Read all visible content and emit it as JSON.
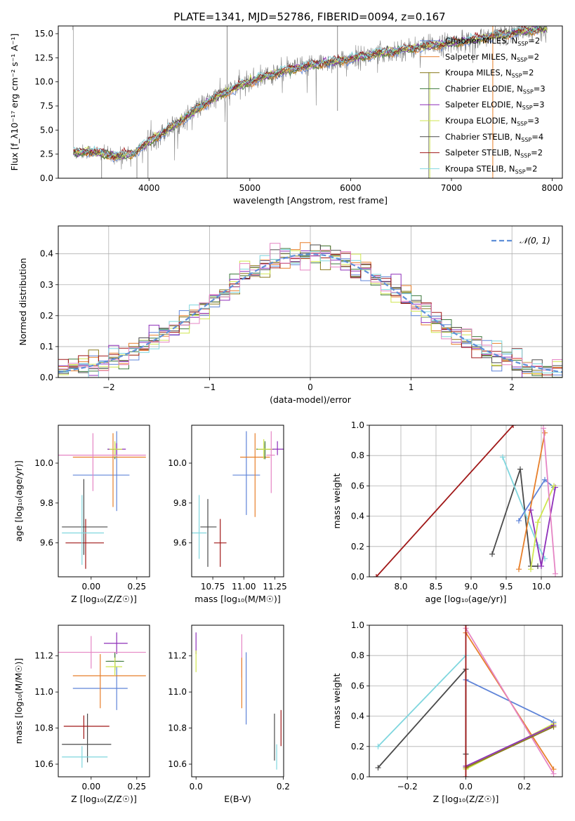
{
  "figure_title": "PLATE=1341, MJD=52786, FIBERID=0094, z=0.167",
  "colors": {
    "Chabrier MILES": "#5f84d8",
    "Salpeter MILES": "#e77f2a",
    "Kroupa MILES": "#8a7a1e",
    "Chabrier ELODIE": "#3e7a3e",
    "Salpeter ELODIE": "#8e2fb9",
    "Kroupa ELODIE": "#cfe64f",
    "Chabrier STELIB": "#4a4a4a",
    "Salpeter STELIB": "#a01818",
    "Kroupa STELIB": "#7fd6de",
    "extra_pink": "#e585c4",
    "normal_curve": "#5f8fd8"
  },
  "chart_data": [
    {
      "id": "spectrum",
      "type": "line",
      "xlabel": "wavelength [Angstrom, rest frame]",
      "ylabel": "Flux [f_λ10⁻¹⁷ erg cm⁻² s⁻¹ A⁻¹]",
      "xlim": [
        3100,
        8100
      ],
      "ylim": [
        0,
        15.8
      ],
      "xticks": [
        4000,
        5000,
        6000,
        7000,
        8000
      ],
      "yticks": [
        0.0,
        2.5,
        5.0,
        7.5,
        10.0,
        12.5,
        15.0
      ],
      "ytick_labels": [
        "0.0",
        "2.5",
        "5.0",
        "7.5",
        "10.0",
        "12.5",
        "15.0"
      ],
      "legend_position": "top-right",
      "legend": [
        {
          "label": "Chabrier MILES, N",
          "sub": "SSP",
          "tail": "=2"
        },
        {
          "label": "Salpeter MILES, N",
          "sub": "SSP",
          "tail": "=2"
        },
        {
          "label": "Kroupa MILES, N",
          "sub": "SSP",
          "tail": "=2"
        },
        {
          "label": "Chabrier ELODIE, N",
          "sub": "SSP",
          "tail": "=3"
        },
        {
          "label": "Salpeter ELODIE, N",
          "sub": "SSP",
          "tail": "=3"
        },
        {
          "label": "Kroupa ELODIE, N",
          "sub": "SSP",
          "tail": "=3"
        },
        {
          "label": "Chabrier STELIB, N",
          "sub": "SSP",
          "tail": "=4"
        },
        {
          "label": "Salpeter STELIB, N",
          "sub": "SSP",
          "tail": "=2"
        },
        {
          "label": "Kroupa STELIB, N",
          "sub": "SSP",
          "tail": "=2"
        }
      ],
      "continuum": {
        "x": [
          3250,
          3400,
          3550,
          3700,
          3850,
          4000,
          4150,
          4300,
          4500,
          4700,
          4900,
          5100,
          5300,
          5500,
          5700,
          5900,
          6100,
          6300,
          6500,
          6700,
          6900,
          7100,
          7300,
          7500,
          7700,
          7900
        ],
        "y": [
          2.6,
          2.8,
          2.5,
          2.3,
          2.6,
          3.8,
          4.8,
          5.8,
          7.4,
          8.6,
          9.6,
          10.4,
          11.0,
          11.5,
          11.9,
          12.2,
          12.6,
          13.0,
          13.3,
          13.6,
          13.9,
          14.2,
          14.5,
          14.9,
          15.2,
          15.5
        ]
      }
    },
    {
      "id": "residuals",
      "type": "histogram",
      "xlabel": "(data-model)/error",
      "ylabel": "Normed distribution",
      "xlim": [
        -2.5,
        2.5
      ],
      "ylim": [
        0,
        0.49
      ],
      "xticks": [
        -2,
        -1,
        0,
        1,
        2
      ],
      "xtick_labels": [
        "−2",
        "−1",
        "0",
        "1",
        "2"
      ],
      "yticks": [
        0.0,
        0.1,
        0.2,
        0.3,
        0.4
      ],
      "ytick_labels": [
        "0.0",
        "0.1",
        "0.2",
        "0.3",
        "0.4"
      ],
      "grid": true,
      "legend_position": "top-right",
      "legend_label": "𝒩(0, 1)",
      "bin_width": 0.1
    },
    {
      "id": "age_vs_Z",
      "type": "errorbar",
      "xlabel": "Z [log₁₀(Z/Z☉)]",
      "ylabel": "age [log₁₀(age/yr)]",
      "xlim": [
        -0.18,
        0.32
      ],
      "ylim": [
        9.43,
        10.19
      ],
      "xticks": [
        0.0,
        0.25
      ],
      "xtick_labels": [
        "0.00",
        "0.25"
      ],
      "yticks": [
        9.6,
        9.8,
        10.0
      ],
      "ytick_labels": [
        "9.6",
        "9.8",
        "10.0"
      ],
      "points": [
        {
          "model": "Chabrier MILES",
          "x": 0.14,
          "y": 9.94,
          "xerr": [
            0.24,
            0.07
          ],
          "yerr": [
            0.18,
            0.22
          ]
        },
        {
          "model": "Salpeter MILES",
          "x": 0.12,
          "y": 10.03,
          "xerr": [
            0.22,
            0.18
          ],
          "yerr": [
            0.25,
            0.12
          ]
        },
        {
          "model": "Kroupa MILES",
          "x": 0.13,
          "y": 10.07,
          "xerr": [
            0.03,
            0.04
          ],
          "yerr": [
            0.03,
            0.03
          ]
        },
        {
          "model": "Chabrier ELODIE",
          "x": 0.13,
          "y": 10.07,
          "xerr": [
            0.04,
            0.04
          ],
          "yerr": [
            0.05,
            0.03
          ]
        },
        {
          "model": "Salpeter ELODIE",
          "x": 0.14,
          "y": 10.07,
          "xerr": [
            0.05,
            0.05
          ],
          "yerr": [
            0.03,
            0.03
          ]
        },
        {
          "model": "Kroupa ELODIE",
          "x": 0.13,
          "y": 10.07,
          "xerr": [
            0.03,
            0.04
          ],
          "yerr": [
            0.04,
            0.04
          ]
        },
        {
          "model": "Chabrier STELIB",
          "x": -0.04,
          "y": 9.68,
          "xerr": [
            0.12,
            0.13
          ],
          "yerr": [
            0.14,
            0.24
          ]
        },
        {
          "model": "Salpeter STELIB",
          "x": -0.03,
          "y": 9.6,
          "xerr": [
            0.11,
            0.1
          ],
          "yerr": [
            0.13,
            0.12
          ]
        },
        {
          "model": "Kroupa STELIB",
          "x": -0.05,
          "y": 9.65,
          "xerr": [
            0.11,
            0.12
          ],
          "yerr": [
            0.16,
            0.19
          ]
        },
        {
          "model": "extra_pink",
          "x": 0.01,
          "y": 10.04,
          "xerr": [
            0.26,
            0.29
          ],
          "yerr": [
            0.18,
            0.11
          ]
        }
      ]
    },
    {
      "id": "age_vs_mass",
      "type": "errorbar",
      "xlabel": "mass [log₁₀(M/M☉)]",
      "ylabel": "",
      "xlim": [
        10.58,
        11.32
      ],
      "ylim": [
        9.43,
        10.19
      ],
      "xticks": [
        10.75,
        11.0,
        11.25
      ],
      "xtick_labels": [
        "10.75",
        "11.00",
        "11.25"
      ],
      "yticks": [
        9.6,
        9.8,
        10.0
      ],
      "ytick_labels": [
        "9.6",
        "9.8",
        "10.0"
      ],
      "points": [
        {
          "model": "Chabrier MILES",
          "x": 11.02,
          "y": 9.94,
          "xerr": [
            0.11,
            0.11
          ],
          "yerr": [
            0.2,
            0.22
          ]
        },
        {
          "model": "Salpeter MILES",
          "x": 11.09,
          "y": 10.03,
          "xerr": [
            0.12,
            0.12
          ],
          "yerr": [
            0.3,
            0.12
          ]
        },
        {
          "model": "Kroupa MILES",
          "x": 11.17,
          "y": 10.07,
          "xerr": [
            0.06,
            0.06
          ],
          "yerr": [
            0.05,
            0.03
          ]
        },
        {
          "model": "Chabrier ELODIE",
          "x": 11.17,
          "y": 10.07,
          "xerr": [
            0.07,
            0.07
          ],
          "yerr": [
            0.05,
            0.04
          ]
        },
        {
          "model": "Salpeter ELODIE",
          "x": 11.27,
          "y": 10.07,
          "xerr": [
            0.06,
            0.06
          ],
          "yerr": [
            0.03,
            0.04
          ]
        },
        {
          "model": "Kroupa ELODIE",
          "x": 11.16,
          "y": 10.07,
          "xerr": [
            0.05,
            0.07
          ],
          "yerr": [
            0.05,
            0.05
          ]
        },
        {
          "model": "Chabrier STELIB",
          "x": 10.71,
          "y": 9.68,
          "xerr": [
            0.06,
            0.07
          ],
          "yerr": [
            0.2,
            0.14
          ]
        },
        {
          "model": "Salpeter STELIB",
          "x": 10.81,
          "y": 9.6,
          "xerr": [
            0.05,
            0.05
          ],
          "yerr": [
            0.12,
            0.12
          ]
        },
        {
          "model": "Kroupa STELIB",
          "x": 10.64,
          "y": 9.65,
          "xerr": [
            0.06,
            0.06
          ],
          "yerr": [
            0.13,
            0.19
          ]
        },
        {
          "model": "extra_pink",
          "x": 11.22,
          "y": 10.04,
          "xerr": [
            0.04,
            0.03
          ],
          "yerr": [
            0.19,
            0.12
          ]
        }
      ]
    },
    {
      "id": "weight_vs_age",
      "type": "line",
      "xlabel": "age [log₁₀(age/yr)]",
      "ylabel": "mass weight",
      "xlim": [
        7.55,
        10.3
      ],
      "ylim": [
        0,
        1
      ],
      "xticks": [
        8.0,
        8.5,
        9.0,
        9.5,
        10.0
      ],
      "xtick_labels": [
        "8.0",
        "8.5",
        "9.0",
        "9.5",
        "10.0"
      ],
      "yticks": [
        0.0,
        0.2,
        0.4,
        0.6,
        0.8,
        1.0
      ],
      "ytick_labels": [
        "0.0",
        "0.2",
        "0.4",
        "0.6",
        "0.8",
        "1.0"
      ],
      "grid": true,
      "series": [
        {
          "model": "Salpeter STELIB",
          "x": [
            7.65,
            9.6
          ],
          "y": [
            0.0,
            1.0
          ]
        },
        {
          "model": "Chabrier STELIB",
          "x": [
            9.3,
            9.7,
            9.85,
            9.95
          ],
          "y": [
            0.15,
            0.71,
            0.07,
            0.07
          ]
        },
        {
          "model": "Kroupa STELIB",
          "x": [
            9.45,
            9.95,
            10.05
          ],
          "y": [
            0.79,
            0.21,
            0.12
          ]
        },
        {
          "model": "Chabrier MILES",
          "x": [
            9.68,
            10.05,
            10.18
          ],
          "y": [
            0.37,
            0.64,
            0.59
          ]
        },
        {
          "model": "Salpeter MILES",
          "x": [
            9.68,
            10.05
          ],
          "y": [
            0.05,
            0.95
          ]
        },
        {
          "model": "Salpeter ELODIE",
          "x": [
            9.85,
            10.0,
            10.2
          ],
          "y": [
            0.44,
            0.07,
            0.59
          ]
        },
        {
          "model": "Kroupa ELODIE",
          "x": [
            9.85,
            9.95,
            10.18
          ],
          "y": [
            0.05,
            0.36,
            0.6
          ]
        },
        {
          "model": "extra_pink",
          "x": [
            10.03,
            10.2
          ],
          "y": [
            0.98,
            0.02
          ]
        }
      ]
    },
    {
      "id": "mass_vs_Z",
      "type": "errorbar",
      "xlabel": "Z [log₁₀(Z/Z☉)]",
      "ylabel": "mass [log₁₀(M/M☉)]",
      "xlim": [
        -0.18,
        0.32
      ],
      "ylim": [
        10.53,
        11.37
      ],
      "xticks": [
        0.0,
        0.25
      ],
      "xtick_labels": [
        "0.00",
        "0.25"
      ],
      "yticks": [
        10.6,
        10.8,
        11.0,
        11.2
      ],
      "ytick_labels": [
        "10.6",
        "10.8",
        "11.0",
        "11.2"
      ],
      "points": [
        {
          "model": "Chabrier MILES",
          "x": 0.14,
          "y": 11.02,
          "xerr": [
            0.24,
            0.06
          ],
          "yerr": [
            0.12,
            0.12
          ]
        },
        {
          "model": "Salpeter MILES",
          "x": 0.05,
          "y": 11.09,
          "xerr": [
            0.15,
            0.25
          ],
          "yerr": [
            0.18,
            0.12
          ]
        },
        {
          "model": "Kroupa MILES",
          "x": 0.13,
          "y": 11.17,
          "xerr": [
            0.04,
            0.03
          ],
          "yerr": [
            0.04,
            0.04
          ]
        },
        {
          "model": "Chabrier ELODIE",
          "x": 0.13,
          "y": 11.17,
          "xerr": [
            0.05,
            0.05
          ],
          "yerr": [
            0.05,
            0.05
          ]
        },
        {
          "model": "Salpeter ELODIE",
          "x": 0.14,
          "y": 11.27,
          "xerr": [
            0.07,
            0.06
          ],
          "yerr": [
            0.06,
            0.06
          ]
        },
        {
          "model": "Kroupa ELODIE",
          "x": 0.13,
          "y": 11.14,
          "xerr": [
            0.05,
            0.04
          ],
          "yerr": [
            0.05,
            0.05
          ]
        },
        {
          "model": "Chabrier STELIB",
          "x": -0.02,
          "y": 10.71,
          "xerr": [
            0.14,
            0.13
          ],
          "yerr": [
            0.1,
            0.17
          ]
        },
        {
          "model": "Salpeter STELIB",
          "x": -0.04,
          "y": 10.81,
          "xerr": [
            0.11,
            0.14
          ],
          "yerr": [
            0.07,
            0.06
          ]
        },
        {
          "model": "Kroupa STELIB",
          "x": -0.05,
          "y": 10.64,
          "xerr": [
            0.11,
            0.14
          ],
          "yerr": [
            0.06,
            0.06
          ]
        },
        {
          "model": "extra_pink",
          "x": 0.0,
          "y": 11.22,
          "xerr": [
            0.18,
            0.3
          ],
          "yerr": [
            0.09,
            0.09
          ]
        }
      ]
    },
    {
      "id": "mass_vs_EBV",
      "type": "errorbar",
      "xlabel": "E(B-V)",
      "ylabel": "",
      "xlim": [
        -0.01,
        0.201
      ],
      "ylim": [
        10.53,
        11.37
      ],
      "xticks": [
        0.0,
        0.2
      ],
      "xtick_labels": [
        "0.0",
        "0.2"
      ],
      "yticks": [
        10.6,
        10.8,
        11.0,
        11.2
      ],
      "ytick_labels": [
        "10.6",
        "10.8",
        "11.0",
        "11.2"
      ],
      "points": [
        {
          "model": "Salpeter ELODIE",
          "x": 0.0,
          "y": 11.27,
          "xerr": [
            0,
            0
          ],
          "yerr": [
            0.06,
            0.06
          ]
        },
        {
          "model": "Kroupa ELODIE",
          "x": 0.0,
          "y": 11.17,
          "xerr": [
            0,
            0
          ],
          "yerr": [
            0.06,
            0.06
          ]
        },
        {
          "model": "extra_pink",
          "x": 0.105,
          "y": 11.2,
          "xerr": [
            0,
            0
          ],
          "yerr": [
            0.12,
            0.12
          ]
        },
        {
          "model": "Salpeter MILES",
          "x": 0.105,
          "y": 11.05,
          "xerr": [
            0,
            0
          ],
          "yerr": [
            0.14,
            0.14
          ]
        },
        {
          "model": "Chabrier MILES",
          "x": 0.115,
          "y": 11.02,
          "xerr": [
            0,
            0
          ],
          "yerr": [
            0.2,
            0.2
          ]
        },
        {
          "model": "Chabrier STELIB",
          "x": 0.18,
          "y": 10.75,
          "xerr": [
            0,
            0
          ],
          "yerr": [
            0.13,
            0.13
          ]
        },
        {
          "model": "Kroupa STELIB",
          "x": 0.185,
          "y": 10.64,
          "xerr": [
            0,
            0
          ],
          "yerr": [
            0.07,
            0.07
          ]
        },
        {
          "model": "Salpeter STELIB",
          "x": 0.195,
          "y": 10.8,
          "xerr": [
            0,
            0
          ],
          "yerr": [
            0.1,
            0.1
          ]
        }
      ]
    },
    {
      "id": "weight_vs_Z",
      "type": "line",
      "xlabel": "Z [log₁₀(Z/Z☉)]",
      "ylabel": "mass weight",
      "xlim": [
        -0.33,
        0.33
      ],
      "ylim": [
        0,
        1
      ],
      "xticks": [
        -0.2,
        0.0,
        0.2
      ],
      "xtick_labels": [
        "−0.2",
        "0.0",
        "0.2"
      ],
      "yticks": [
        0.0,
        0.2,
        0.4,
        0.6,
        0.8,
        1.0
      ],
      "ytick_labels": [
        "0.0",
        "0.2",
        "0.4",
        "0.6",
        "0.8",
        "1.0"
      ],
      "grid": true,
      "series": [
        {
          "model": "Kroupa STELIB",
          "x": [
            -0.3,
            0.0
          ],
          "y": [
            0.2,
            0.8
          ]
        },
        {
          "model": "Chabrier STELIB",
          "x": [
            -0.3,
            0.0,
            0.0,
            0.0
          ],
          "y": [
            0.06,
            0.71,
            0.15,
            0.07
          ]
        },
        {
          "model": "Chabrier MILES",
          "x": [
            0.0,
            0.3
          ],
          "y": [
            0.64,
            0.36
          ]
        },
        {
          "model": "Salpeter MILES",
          "x": [
            0.0,
            0.3
          ],
          "y": [
            0.95,
            0.05
          ]
        },
        {
          "model": "extra_pink",
          "x": [
            0.0,
            0.3
          ],
          "y": [
            0.98,
            0.02
          ]
        },
        {
          "model": "Kroupa ELODIE",
          "x": [
            0.0,
            0.3
          ],
          "y": [
            0.05,
            0.35
          ]
        },
        {
          "model": "Salpeter ELODIE",
          "x": [
            0.0,
            0.3
          ],
          "y": [
            0.07,
            0.34
          ]
        },
        {
          "model": "Kroupa MILES",
          "x": [
            0.0,
            0.3
          ],
          "y": [
            0.06,
            0.33
          ]
        },
        {
          "model": "Salpeter STELIB",
          "x": [
            0.0,
            0.0
          ],
          "y": [
            0.0,
            1.0
          ]
        }
      ]
    }
  ]
}
